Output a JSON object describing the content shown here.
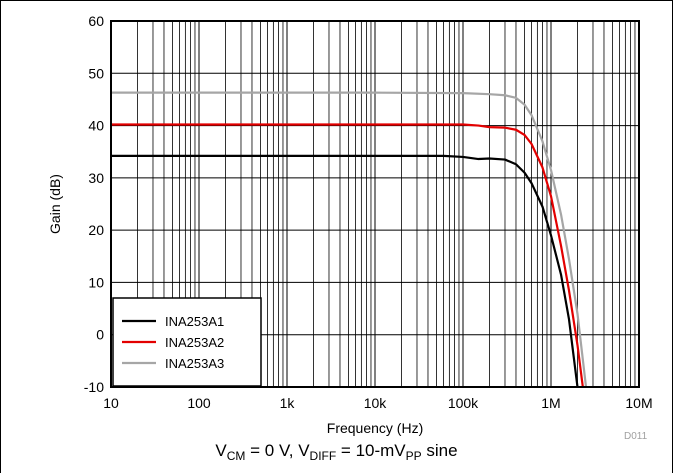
{
  "chart_data": {
    "type": "line",
    "xlabel": "Frequency (Hz)",
    "ylabel": "Gain (dB)",
    "xscale": "log",
    "xlim": [
      10,
      10000000
    ],
    "ylim": [
      -10,
      60
    ],
    "x_ticks": [
      10,
      100,
      1000,
      10000,
      100000,
      1000000,
      10000000
    ],
    "x_tick_labels": [
      "10",
      "100",
      "1k",
      "10k",
      "100k",
      "1M",
      "10M"
    ],
    "y_ticks": [
      -10,
      0,
      10,
      20,
      30,
      40,
      50,
      60
    ],
    "y_tick_labels": [
      "-10",
      "0",
      "10",
      "20",
      "30",
      "40",
      "50",
      "60"
    ],
    "grid": true,
    "legend_position": "bottom-left",
    "series": [
      {
        "name": "INA253A1",
        "color": "#000000",
        "points": [
          [
            10,
            34.2
          ],
          [
            10000,
            34.2
          ],
          [
            60000,
            34.2
          ],
          [
            100000,
            34.0
          ],
          [
            150000,
            33.6
          ],
          [
            200000,
            33.7
          ],
          [
            300000,
            33.5
          ],
          [
            400000,
            32.6
          ],
          [
            500000,
            31.0
          ],
          [
            600000,
            29.0
          ],
          [
            800000,
            24.5
          ],
          [
            1000000,
            19.0
          ],
          [
            1300000,
            11.5
          ],
          [
            1600000,
            3.0
          ],
          [
            2000000,
            -10.0
          ]
        ]
      },
      {
        "name": "INA253A2",
        "color": "#e30000",
        "points": [
          [
            10,
            40.2
          ],
          [
            10000,
            40.2
          ],
          [
            100000,
            40.2
          ],
          [
            150000,
            40.0
          ],
          [
            200000,
            39.7
          ],
          [
            300000,
            39.6
          ],
          [
            400000,
            39.2
          ],
          [
            500000,
            38.2
          ],
          [
            600000,
            36.5
          ],
          [
            800000,
            32.0
          ],
          [
            1000000,
            26.5
          ],
          [
            1300000,
            17.0
          ],
          [
            1600000,
            8.5
          ],
          [
            2000000,
            -2.0
          ],
          [
            2300000,
            -10.0
          ]
        ]
      },
      {
        "name": "INA253A3",
        "color": "#a6a6a6",
        "points": [
          [
            10,
            46.3
          ],
          [
            10000,
            46.3
          ],
          [
            100000,
            46.2
          ],
          [
            200000,
            46.0
          ],
          [
            300000,
            45.8
          ],
          [
            400000,
            45.3
          ],
          [
            500000,
            44.0
          ],
          [
            600000,
            42.0
          ],
          [
            800000,
            37.0
          ],
          [
            1000000,
            31.5
          ],
          [
            1300000,
            23.0
          ],
          [
            1600000,
            14.5
          ],
          [
            2000000,
            4.0
          ],
          [
            2500000,
            -10.0
          ]
        ]
      }
    ]
  },
  "figure_id": "D011",
  "caption": {
    "v_cm": "V",
    "v_cm_sub": "CM",
    "v_cm_rest": " = 0 V, ",
    "v_diff": "V",
    "v_diff_sub": "DIFF",
    "v_diff_rest": " = 10-mV",
    "pp_sub": "PP",
    "tail": " sine"
  }
}
